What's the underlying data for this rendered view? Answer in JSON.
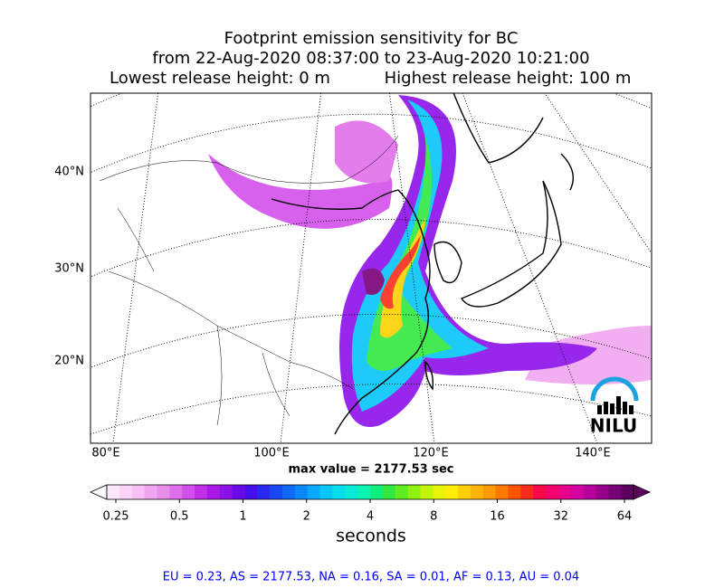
{
  "title": {
    "line1": "Footprint emission sensitivity for BC",
    "line2": "from 22-Aug-2020 08:37:00 to 23-Aug-2020 10:21:00",
    "lowest": "Lowest release height: 0 m",
    "highest": "Highest release height: 100 m"
  },
  "map": {
    "lat_labels": [
      "40°N",
      "30°N",
      "20°N"
    ],
    "lon_labels": [
      "80°E",
      "100°E",
      "120°E",
      "140°E"
    ],
    "max_value_text": "max value = 2177.53 sec",
    "logo": "NILU"
  },
  "colorbar": {
    "label": "seconds",
    "log_base": 2,
    "ticks": [
      {
        "value": 0.25,
        "label": "0.25"
      },
      {
        "value": 0.5,
        "label": "0.5"
      },
      1,
      2,
      4,
      8,
      16,
      32,
      64
    ],
    "colors": [
      "#fde8fb",
      "#fbd3f7",
      "#f7bff3",
      "#f0a6ef",
      "#ea8ceb",
      "#e070ea",
      "#d34fea",
      "#c22ee8",
      "#a818e6",
      "#8c10e8",
      "#6a0ae8",
      "#4610ee",
      "#2a28f4",
      "#1848f8",
      "#1268fa",
      "#0c88fb",
      "#08a8fa",
      "#06c6f8",
      "#04dcf0",
      "#04ecd8",
      "#08f4b0",
      "#10f080",
      "#30e840",
      "#60ec20",
      "#90f010",
      "#c0f408",
      "#e8f400",
      "#fcec00",
      "#fcd000",
      "#fcb400",
      "#fc9800",
      "#fc7a00",
      "#fc5400",
      "#fc2c1c",
      "#fc0848",
      "#f4006c",
      "#e8008c",
      "#d600a0",
      "#b8009c",
      "#98008c",
      "#780078",
      "#5a005a"
    ]
  },
  "footer": "EU = 0.23,  AS = 2177.53,  NA = 0.16,  SA = 0.01,  AF = 0.13,  AU = 0.04"
}
